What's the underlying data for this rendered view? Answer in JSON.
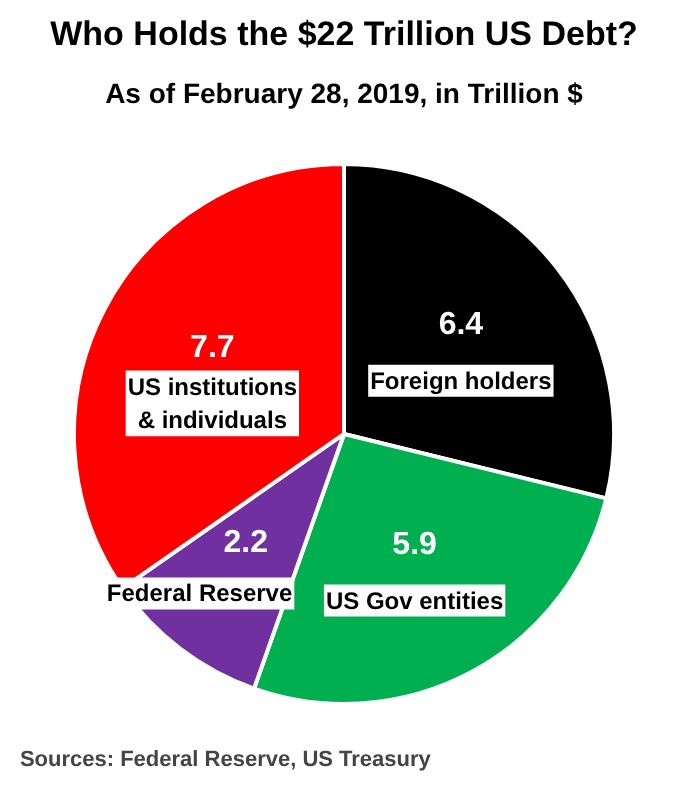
{
  "chart_data": {
    "type": "pie",
    "title": "Who Holds the $22 Trillion US Debt?",
    "subtitle": "As of February 28, 2019, in Trillion $",
    "categories": [
      "Foreign holders",
      "US Gov entities",
      "Federal Reserve",
      "US institutions & individuals"
    ],
    "values": [
      6.4,
      5.9,
      2.2,
      7.7
    ],
    "colors": [
      "#000000",
      "#00b050",
      "#7030a0",
      "#ff0000"
    ],
    "data_labels": true,
    "annotations": [
      "Sources: Federal Reserve, US Treasury"
    ]
  }
}
